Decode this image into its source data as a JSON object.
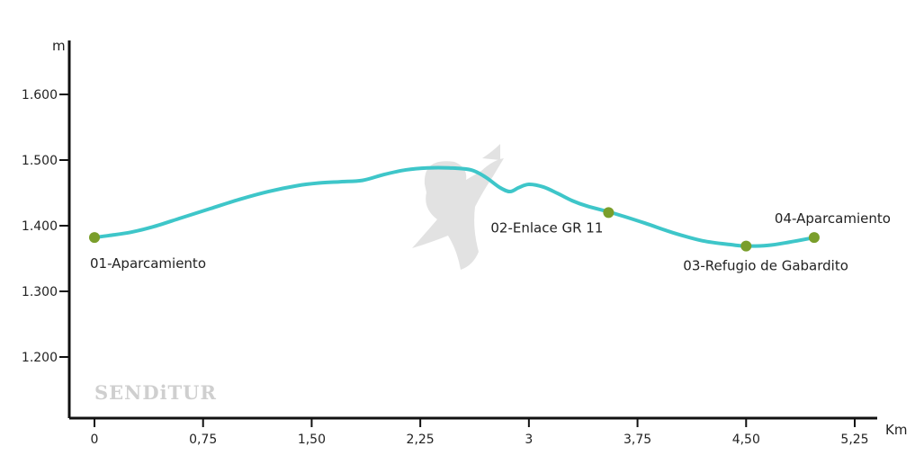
{
  "chart_data": {
    "type": "line",
    "title": "",
    "xlabel": "Km",
    "ylabel": "m",
    "xlim": [
      0,
      5.25
    ],
    "ylim": [
      1100,
      1700
    ],
    "x_ticks": [
      0,
      0.75,
      1.5,
      2.25,
      3,
      3.75,
      4.5,
      5.25
    ],
    "x_tick_labels": [
      "0",
      "0,75",
      "1,50",
      "2,25",
      "3",
      "3,75",
      "4,50",
      "5,25"
    ],
    "y_ticks": [
      1200,
      1300,
      1400,
      1500,
      1600
    ],
    "y_tick_labels": [
      "1.200",
      "1.300",
      "1.400",
      "1.500",
      "1.600"
    ],
    "grid": false,
    "colors": {
      "line": "#3ec6c9",
      "waypoint": "#7a9e2b",
      "axis": "#111111"
    },
    "series": [
      {
        "x": [
          0,
          0.1,
          0.25,
          0.4,
          0.6,
          0.8,
          1.0,
          1.2,
          1.4,
          1.55,
          1.7,
          1.85,
          2.0,
          2.15,
          2.3,
          2.45,
          2.6,
          2.7,
          2.8,
          2.87,
          2.93,
          3.0,
          3.1,
          3.2,
          3.3,
          3.4,
          3.6,
          3.8,
          4.0,
          4.2,
          4.4,
          4.5,
          4.65,
          4.8,
          4.97
        ],
        "y": [
          1382,
          1385,
          1390,
          1398,
          1412,
          1426,
          1440,
          1452,
          1461,
          1465,
          1467,
          1469,
          1478,
          1485,
          1488,
          1488,
          1485,
          1474,
          1458,
          1452,
          1458,
          1463,
          1459,
          1449,
          1438,
          1430,
          1418,
          1404,
          1389,
          1377,
          1371,
          1369,
          1370,
          1375,
          1382
        ]
      }
    ],
    "waypoints": [
      {
        "x": 0,
        "y": 1382,
        "label": "01-Aparcamiento"
      },
      {
        "x": 3.55,
        "y": 1420,
        "label": "02-Enlace GR 11"
      },
      {
        "x": 4.5,
        "y": 1369,
        "label": "03-Refugio de Gabardito"
      },
      {
        "x": 4.97,
        "y": 1382,
        "label": "04-Aparcamiento"
      }
    ]
  },
  "watermark": {
    "brand_text": "SENDiTUR",
    "logo_icon": "bird-logo-watermark"
  }
}
